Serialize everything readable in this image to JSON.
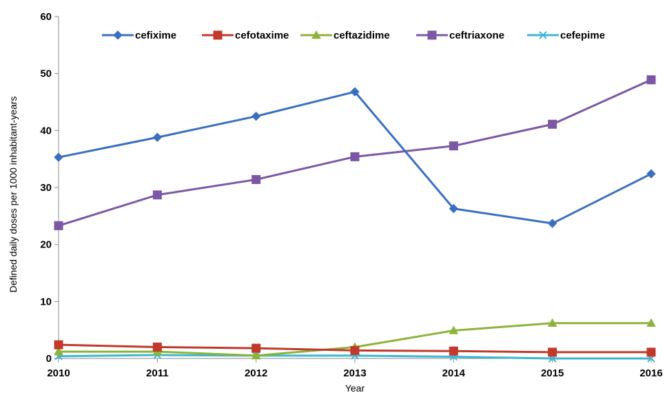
{
  "chart_data": {
    "type": "line",
    "title": "",
    "xlabel": "Year",
    "ylabel": "Defined daily doses per 1000 inhabitant-years",
    "categories": [
      "2010",
      "2011",
      "2012",
      "2013",
      "2014",
      "2015",
      "2016"
    ],
    "ylim": [
      0,
      60
    ],
    "yticks": [
      0,
      10,
      20,
      30,
      40,
      50,
      60
    ],
    "grid": false,
    "legend_position": "top",
    "series": [
      {
        "name": "cefixime",
        "color": "#3a6fc0",
        "marker": "diamond",
        "values": [
          35.3,
          38.8,
          42.5,
          46.8,
          26.3,
          23.7,
          32.4
        ]
      },
      {
        "name": "cefotaxime",
        "color": "#c0392b",
        "marker": "square",
        "values": [
          2.4,
          2.0,
          1.8,
          1.4,
          1.3,
          1.1,
          1.1
        ]
      },
      {
        "name": "ceftazidime",
        "color": "#8db33a",
        "marker": "triangle",
        "values": [
          1.2,
          1.2,
          0.5,
          2.0,
          4.9,
          6.2,
          6.2
        ]
      },
      {
        "name": "ceftriaxone",
        "color": "#7b57a5",
        "marker": "square",
        "values": [
          23.3,
          28.7,
          31.4,
          35.4,
          37.3,
          41.1,
          48.9
        ]
      },
      {
        "name": "cefepime",
        "color": "#3fb6d0",
        "marker": "x",
        "values": [
          0.4,
          0.6,
          0.5,
          0.5,
          0.3,
          0.0,
          0.0
        ]
      }
    ]
  }
}
